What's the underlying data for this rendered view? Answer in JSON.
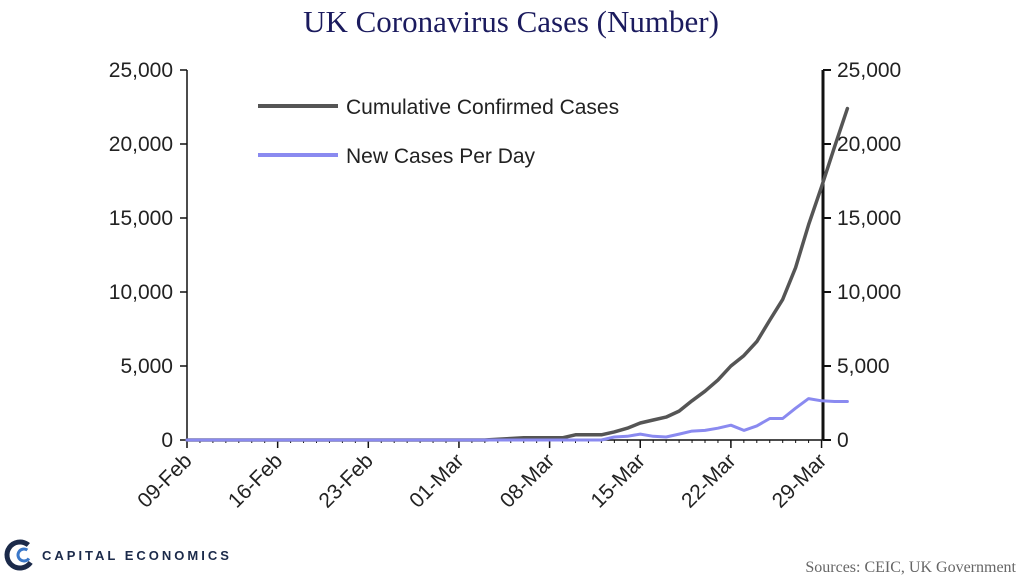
{
  "chart_data": {
    "type": "line",
    "title": "UK Coronavirus Cases (Number)",
    "x_tick_labels": [
      "09-Feb",
      "16-Feb",
      "23-Feb",
      "01-Mar",
      "08-Mar",
      "15-Mar",
      "22-Mar",
      "29-Mar"
    ],
    "y_left": {
      "ylim": [
        0,
        25000
      ],
      "ticks": [
        "0",
        "5,000",
        "10,000",
        "15,000",
        "20,000",
        "25,000"
      ]
    },
    "y_right": {
      "ylim": [
        0,
        25000
      ],
      "ticks": [
        "0",
        "5,000",
        "10,000",
        "15,000",
        "20,000",
        "25,000"
      ]
    },
    "x_start": "09-Feb",
    "x_end": "30-Mar",
    "legend_position": "top-left",
    "series": [
      {
        "name": "Cumulative Confirmed Cases",
        "color": "#555555",
        "points": [
          [
            "09-Feb",
            0
          ],
          [
            "01-Mar",
            0
          ],
          [
            "03-Mar",
            0
          ],
          [
            "04-Mar",
            50
          ],
          [
            "05-Mar",
            100
          ],
          [
            "06-Mar",
            150
          ],
          [
            "07-Mar",
            150
          ],
          [
            "08-Mar",
            150
          ],
          [
            "09-Mar",
            150
          ],
          [
            "10-Mar",
            350
          ],
          [
            "11-Mar",
            350
          ],
          [
            "12-Mar",
            350
          ],
          [
            "13-Mar",
            550
          ],
          [
            "14-Mar",
            800
          ],
          [
            "15-Mar",
            1150
          ],
          [
            "16-Mar",
            1350
          ],
          [
            "17-Mar",
            1550
          ],
          [
            "18-Mar",
            1950
          ],
          [
            "19-Mar",
            2650
          ],
          [
            "20-Mar",
            3300
          ],
          [
            "21-Mar",
            4050
          ],
          [
            "22-Mar",
            5000
          ],
          [
            "23-Mar",
            5700
          ],
          [
            "24-Mar",
            6650
          ],
          [
            "25-Mar",
            8100
          ],
          [
            "26-Mar",
            9500
          ],
          [
            "27-Mar",
            11650
          ],
          [
            "28-Mar",
            14550
          ],
          [
            "29-Mar",
            17100
          ],
          [
            "30-Mar",
            19800
          ],
          [
            "31-Mar",
            22400
          ]
        ]
      },
      {
        "name": "New Cases Per Day",
        "color": "#8a8af0",
        "points": [
          [
            "09-Feb",
            0
          ],
          [
            "01-Mar",
            0
          ],
          [
            "10-Mar",
            0
          ],
          [
            "11-Mar",
            0
          ],
          [
            "12-Mar",
            0
          ],
          [
            "13-Mar",
            200
          ],
          [
            "14-Mar",
            250
          ],
          [
            "15-Mar",
            400
          ],
          [
            "16-Mar",
            250
          ],
          [
            "17-Mar",
            200
          ],
          [
            "18-Mar",
            400
          ],
          [
            "19-Mar",
            600
          ],
          [
            "20-Mar",
            650
          ],
          [
            "21-Mar",
            800
          ],
          [
            "22-Mar",
            1000
          ],
          [
            "23-Mar",
            650
          ],
          [
            "24-Mar",
            950
          ],
          [
            "25-Mar",
            1450
          ],
          [
            "26-Mar",
            1450
          ],
          [
            "27-Mar",
            2150
          ],
          [
            "28-Mar",
            2800
          ],
          [
            "29-Mar",
            2650
          ],
          [
            "30-Mar",
            2600
          ],
          [
            "31-Mar",
            2600
          ]
        ]
      }
    ]
  },
  "footer": {
    "brand": "CAPITAL ECONOMICS",
    "source": "Sources: CEIC, UK Government"
  }
}
